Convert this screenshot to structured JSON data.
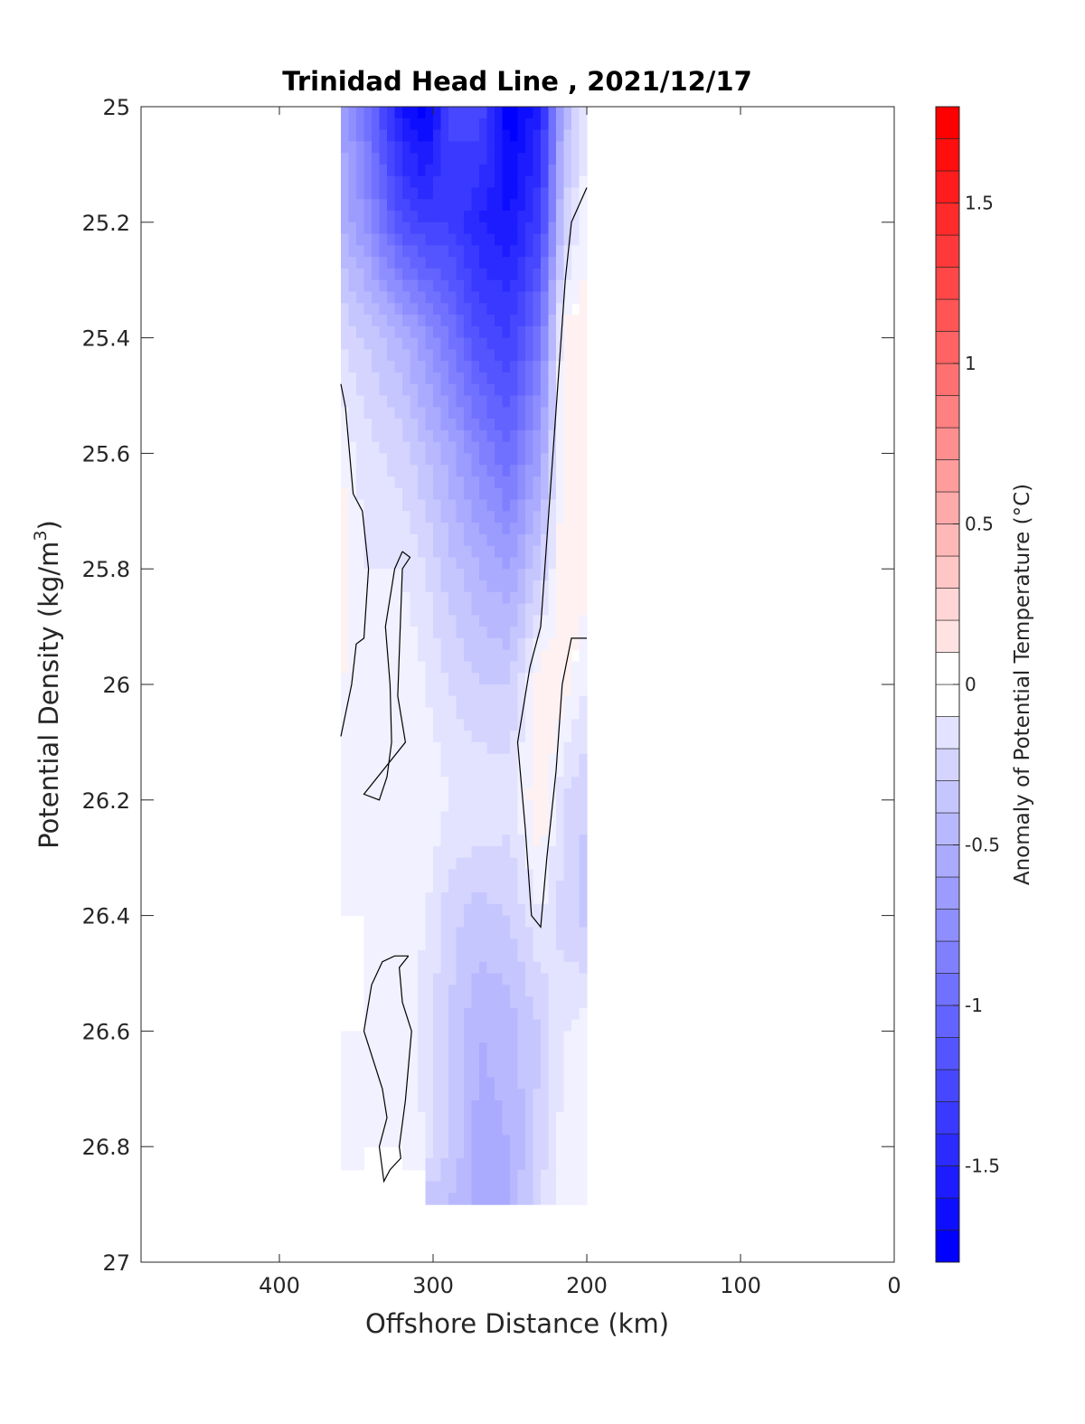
{
  "chart_data": {
    "type": "heatmap",
    "title": "Trinidad Head Line , 2021/12/17",
    "xlabel": "Offshore Distance (km)",
    "ylabel": "Potential Density (kg/m",
    "ylabel_sup": "3",
    "ylabel_close": ")",
    "colorbar_label": "Anomaly of Potential Temperature (°C)",
    "x_reversed": true,
    "xlim": [
      0,
      490
    ],
    "ylim": [
      25,
      27
    ],
    "y_reversed": true,
    "x_ticks": [
      400,
      300,
      200,
      100,
      0
    ],
    "y_ticks": [
      25,
      25.2,
      25.4,
      25.6,
      25.8,
      26,
      26.2,
      26.4,
      26.6,
      26.8,
      27
    ],
    "colorbar_range": [
      -1.8,
      1.8
    ],
    "colorbar_step": 0.1,
    "colorbar_ticks": [
      -1.5,
      -1,
      -0.5,
      0,
      0.5,
      1,
      1.5
    ],
    "colormap": {
      "negative": "#0000ff",
      "zero": "#ffffff",
      "positive": "#ff0000"
    },
    "data_extent": {
      "x": [
        200,
        360
      ],
      "y": [
        25,
        26.9
      ]
    },
    "grid": false,
    "anomaly_rows": [
      {
        "y": 25.0,
        "points": [
          [
            360,
            -0.6
          ],
          [
            345,
            -0.9
          ],
          [
            320,
            -1.6
          ],
          [
            305,
            -1.8
          ],
          [
            290,
            -1.3
          ],
          [
            270,
            -1.2
          ],
          [
            250,
            -1.8
          ],
          [
            230,
            -1.5
          ],
          [
            215,
            -0.5
          ],
          [
            200,
            -0.1
          ]
        ]
      },
      {
        "y": 25.2,
        "points": [
          [
            360,
            -0.5
          ],
          [
            345,
            -0.7
          ],
          [
            320,
            -1.2
          ],
          [
            305,
            -1.3
          ],
          [
            290,
            -1.3
          ],
          [
            270,
            -1.5
          ],
          [
            250,
            -1.6
          ],
          [
            230,
            -1.3
          ],
          [
            215,
            -0.3
          ],
          [
            200,
            0.0
          ]
        ]
      },
      {
        "y": 25.4,
        "points": [
          [
            360,
            -0.2
          ],
          [
            345,
            -0.3
          ],
          [
            320,
            -0.5
          ],
          [
            305,
            -0.7
          ],
          [
            290,
            -0.9
          ],
          [
            270,
            -1.2
          ],
          [
            250,
            -1.3
          ],
          [
            230,
            -0.9
          ],
          [
            215,
            0.05
          ],
          [
            200,
            0.05
          ]
        ]
      },
      {
        "y": 25.6,
        "points": [
          [
            360,
            0.0
          ],
          [
            345,
            -0.15
          ],
          [
            320,
            -0.25
          ],
          [
            305,
            -0.4
          ],
          [
            290,
            -0.55
          ],
          [
            270,
            -0.8
          ],
          [
            250,
            -1.0
          ],
          [
            230,
            -0.6
          ],
          [
            215,
            0.05
          ],
          [
            200,
            0.1
          ]
        ]
      },
      {
        "y": 25.8,
        "points": [
          [
            360,
            0.1
          ],
          [
            345,
            -0.1
          ],
          [
            320,
            -0.1
          ],
          [
            305,
            -0.2
          ],
          [
            290,
            -0.35
          ],
          [
            270,
            -0.5
          ],
          [
            250,
            -0.6
          ],
          [
            230,
            -0.3
          ],
          [
            215,
            0.1
          ],
          [
            200,
            0.05
          ]
        ]
      },
      {
        "y": 26.0,
        "points": [
          [
            360,
            0.0
          ],
          [
            345,
            -0.05
          ],
          [
            320,
            0.0
          ],
          [
            305,
            -0.1
          ],
          [
            290,
            -0.2
          ],
          [
            270,
            -0.3
          ],
          [
            250,
            -0.3
          ],
          [
            230,
            0.1
          ],
          [
            215,
            0.05
          ],
          [
            200,
            -0.1
          ]
        ]
      },
      {
        "y": 26.2,
        "points": [
          [
            360,
            -0.1
          ],
          [
            345,
            -0.1
          ],
          [
            320,
            0.0
          ],
          [
            305,
            0.0
          ],
          [
            290,
            -0.1
          ],
          [
            270,
            -0.1
          ],
          [
            250,
            -0.15
          ],
          [
            230,
            0.1
          ],
          [
            215,
            -0.2
          ],
          [
            200,
            -0.3
          ]
        ]
      },
      {
        "y": 26.4,
        "points": [
          [
            360,
            0.0
          ],
          [
            345,
            0.0
          ],
          [
            320,
            0.0
          ],
          [
            305,
            -0.1
          ],
          [
            290,
            -0.25
          ],
          [
            270,
            -0.35
          ],
          [
            250,
            -0.3
          ],
          [
            230,
            -0.1
          ],
          [
            215,
            -0.25
          ],
          [
            200,
            -0.35
          ]
        ]
      },
      {
        "y": 26.6,
        "points": [
          [
            360,
            0.0
          ],
          [
            345,
            0.0
          ],
          [
            320,
            -0.05
          ],
          [
            305,
            -0.15
          ],
          [
            290,
            -0.3
          ],
          [
            270,
            -0.5
          ],
          [
            250,
            -0.45
          ],
          [
            230,
            -0.3
          ],
          [
            215,
            -0.1
          ],
          [
            200,
            -0.05
          ]
        ]
      },
      {
        "y": 26.8,
        "points": [
          [
            360,
            -0.05
          ],
          [
            345,
            0.0
          ],
          [
            320,
            0.0
          ],
          [
            305,
            -0.1
          ],
          [
            290,
            -0.3
          ],
          [
            270,
            -0.55
          ],
          [
            250,
            -0.5
          ],
          [
            230,
            -0.25
          ],
          [
            215,
            -0.05
          ],
          [
            200,
            -0.1
          ]
        ]
      },
      {
        "y": 26.9,
        "points": [
          [
            360,
            null
          ],
          [
            345,
            null
          ],
          [
            320,
            null
          ],
          [
            305,
            null
          ],
          [
            290,
            -0.4
          ],
          [
            270,
            -0.55
          ],
          [
            250,
            -0.5
          ],
          [
            230,
            -0.2
          ],
          [
            215,
            -0.05
          ],
          [
            200,
            -0.05
          ]
        ]
      }
    ],
    "zero_contours": [
      [
        [
          200,
          25.14
        ],
        [
          210,
          25.2
        ],
        [
          214,
          25.3
        ],
        [
          218,
          25.45
        ],
        [
          222,
          25.6
        ],
        [
          226,
          25.75
        ],
        [
          230,
          25.9
        ],
        [
          237,
          25.97
        ],
        [
          245,
          26.1
        ],
        [
          240,
          26.25
        ],
        [
          236,
          26.4
        ],
        [
          230,
          26.42
        ],
        [
          226,
          26.3
        ],
        [
          220,
          26.15
        ],
        [
          216,
          26.0
        ],
        [
          210,
          25.92
        ],
        [
          200,
          25.92
        ]
      ],
      [
        [
          360,
          25.48
        ],
        [
          357,
          25.52
        ],
        [
          352,
          25.67
        ],
        [
          346,
          25.7
        ],
        [
          342,
          25.8
        ],
        [
          345,
          25.92
        ],
        [
          350,
          25.93
        ],
        [
          353,
          26.0
        ],
        [
          360,
          26.09
        ]
      ],
      [
        [
          320,
          25.77
        ],
        [
          325,
          25.8
        ],
        [
          331,
          25.9
        ],
        [
          328,
          26.0
        ],
        [
          327,
          26.1
        ],
        [
          330,
          26.16
        ],
        [
          335,
          26.2
        ],
        [
          345,
          26.19
        ],
        [
          318,
          26.1
        ],
        [
          323,
          26.02
        ],
        [
          320,
          25.8
        ],
        [
          315,
          25.78
        ],
        [
          320,
          25.77
        ]
      ],
      [
        [
          316,
          26.47
        ],
        [
          322,
          26.49
        ],
        [
          320,
          26.55
        ],
        [
          314,
          26.6
        ],
        [
          318,
          26.72
        ],
        [
          322,
          26.8
        ],
        [
          321,
          26.82
        ],
        [
          328,
          26.84
        ],
        [
          332,
          26.86
        ],
        [
          335,
          26.8
        ],
        [
          330,
          26.75
        ],
        [
          333,
          26.7
        ],
        [
          345,
          26.6
        ],
        [
          340,
          26.52
        ],
        [
          333,
          26.48
        ],
        [
          325,
          26.47
        ],
        [
          316,
          26.47
        ]
      ]
    ]
  }
}
